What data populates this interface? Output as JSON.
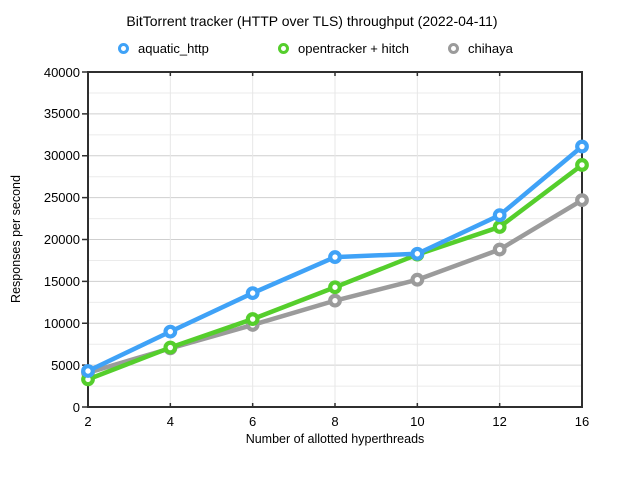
{
  "chart_data": {
    "type": "line",
    "title": "BitTorrent tracker (HTTP over TLS) throughput (2022-04-11)",
    "xlabel": "Number of allotted hyperthreads",
    "ylabel": "Responses per second",
    "categories": [
      "2",
      "4",
      "6",
      "8",
      "10",
      "12",
      "16"
    ],
    "series": [
      {
        "name": "aquatic_http",
        "color": "#3fa2f7",
        "values": [
          4300,
          9000,
          13600,
          17900,
          18300,
          22900,
          31100
        ]
      },
      {
        "name": "opentracker + hitch",
        "color": "#55ce2c",
        "values": [
          3300,
          7100,
          10500,
          14300,
          18200,
          21500,
          28900
        ]
      },
      {
        "name": "chihaya",
        "color": "#9b9b9b",
        "values": [
          4100,
          7000,
          9800,
          12700,
          15200,
          18800,
          24700
        ]
      }
    ],
    "ylim": [
      0,
      40000
    ],
    "y_major_step": 5000,
    "y_minor_step": 2500,
    "y_tick_labels": [
      "0",
      "5000",
      "10000",
      "15000",
      "20000",
      "25000",
      "30000",
      "35000",
      "40000"
    ],
    "legend_position": "top",
    "grid": true,
    "marker": "ring"
  },
  "style": {
    "axis_color": "#2f2f2f",
    "major_grid_color": "#cfcfcf",
    "minor_grid_color": "#ebebeb",
    "vertical_grid_color": "#e7e7e7",
    "background": "#ffffff"
  },
  "legend_layout": {
    "item_lefts": [
      118,
      278,
      448
    ]
  }
}
